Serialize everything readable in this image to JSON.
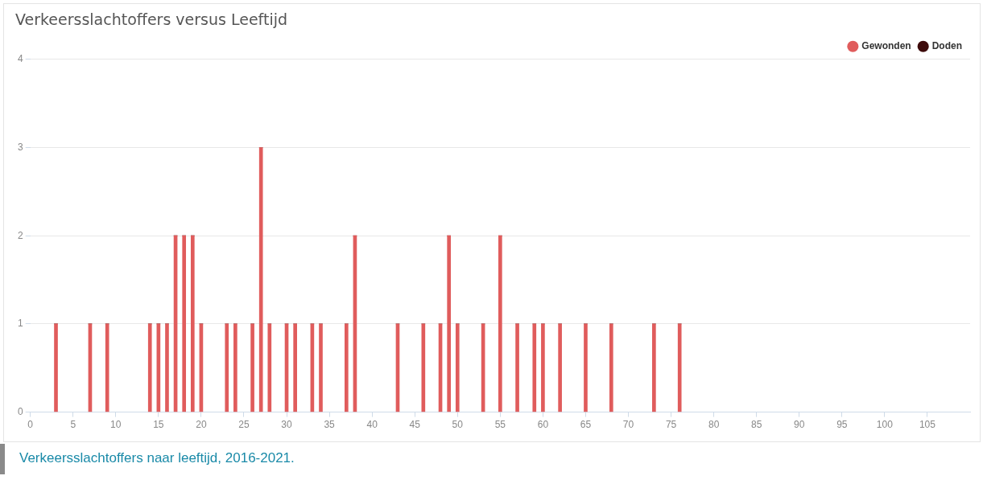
{
  "chart_data": {
    "type": "bar",
    "title": "Verkeersslachtoffers versus Leeftijd",
    "x": [
      3,
      7,
      9,
      14,
      15,
      16,
      17,
      18,
      19,
      20,
      23,
      24,
      26,
      27,
      28,
      30,
      31,
      33,
      34,
      37,
      38,
      43,
      46,
      48,
      49,
      50,
      53,
      55,
      57,
      59,
      60,
      62,
      65,
      68,
      73,
      76
    ],
    "series": [
      {
        "name": "Gewonden",
        "color": "#e05c5c",
        "values": [
          1,
          1,
          1,
          1,
          1,
          1,
          2,
          2,
          2,
          1,
          1,
          1,
          1,
          3,
          1,
          1,
          1,
          1,
          1,
          1,
          2,
          1,
          1,
          1,
          2,
          1,
          1,
          2,
          1,
          1,
          1,
          1,
          1,
          1,
          1,
          1
        ]
      },
      {
        "name": "Doden",
        "color": "#3d0a0a",
        "values": [
          0,
          0,
          0,
          0,
          0,
          0,
          0,
          0,
          0,
          0,
          0,
          0,
          0,
          0,
          0,
          0,
          0,
          0,
          0,
          0,
          0,
          0,
          0,
          0,
          0,
          0,
          0,
          0,
          0,
          0,
          0,
          0,
          0,
          0,
          0,
          0
        ]
      }
    ],
    "stacked": true,
    "xlim": [
      0,
      110
    ],
    "xticks": [
      0,
      5,
      10,
      15,
      20,
      25,
      30,
      35,
      40,
      45,
      50,
      55,
      60,
      65,
      70,
      75,
      80,
      85,
      90,
      95,
      100,
      105
    ],
    "ylim": [
      0,
      4
    ],
    "yticks": [
      0,
      1,
      2,
      3,
      4
    ],
    "grid": "y",
    "legend": "top right",
    "annotations": [
      "Verkeersslachtoffers naar leeftijd, 2016-2021."
    ]
  }
}
